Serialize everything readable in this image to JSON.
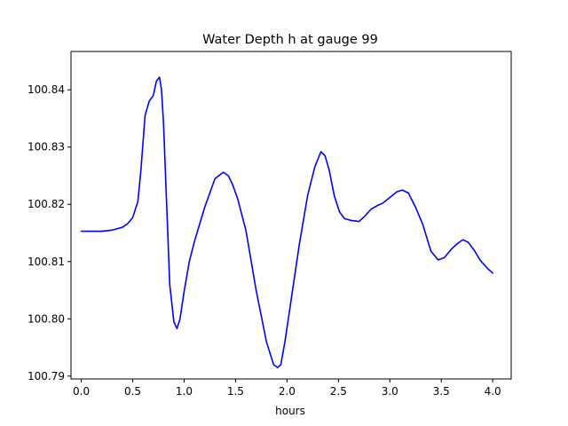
{
  "chart_data": {
    "type": "line",
    "title": "Water Depth h at gauge 99",
    "xlabel": "hours",
    "ylabel": "",
    "xlim": [
      -0.1,
      4.18
    ],
    "ylim": [
      100.7895,
      100.8467
    ],
    "xticks": [
      0.0,
      0.5,
      1.0,
      1.5,
      2.0,
      2.5,
      3.0,
      3.5,
      4.0
    ],
    "xtick_labels": [
      "0.0",
      "0.5",
      "1.0",
      "1.5",
      "2.0",
      "2.5",
      "3.0",
      "3.5",
      "4.0"
    ],
    "yticks": [
      100.79,
      100.8,
      100.81,
      100.82,
      100.83,
      100.84
    ],
    "ytick_labels": [
      "100.79",
      "100.80",
      "100.81",
      "100.82",
      "100.83",
      "100.84"
    ],
    "grid": false,
    "legend": "none",
    "series": [
      {
        "color": "#0000ff",
        "x": [
          0.0,
          0.1,
          0.2,
          0.3,
          0.4,
          0.45,
          0.5,
          0.55,
          0.58,
          0.62,
          0.66,
          0.7,
          0.73,
          0.76,
          0.78,
          0.8,
          0.83,
          0.86,
          0.9,
          0.93,
          0.96,
          1.0,
          1.05,
          1.1,
          1.2,
          1.3,
          1.38,
          1.43,
          1.47,
          1.52,
          1.6,
          1.7,
          1.8,
          1.87,
          1.91,
          1.94,
          1.98,
          2.05,
          2.12,
          2.2,
          2.27,
          2.33,
          2.37,
          2.41,
          2.46,
          2.51,
          2.56,
          2.62,
          2.7,
          2.76,
          2.82,
          2.88,
          2.93,
          3.0,
          3.07,
          3.12,
          3.18,
          3.25,
          3.32,
          3.4,
          3.47,
          3.53,
          3.6,
          3.66,
          3.71,
          3.76,
          3.82,
          3.88,
          3.95,
          4.0
        ],
        "y": [
          100.8153,
          100.8153,
          100.8153,
          100.8155,
          100.816,
          100.8166,
          100.8177,
          100.8205,
          100.826,
          100.8355,
          100.838,
          100.839,
          100.8415,
          100.8422,
          100.84,
          100.834,
          100.82,
          100.806,
          100.7995,
          100.7983,
          100.8,
          100.8048,
          100.81,
          100.8135,
          100.8195,
          100.8245,
          100.8256,
          100.825,
          100.8235,
          100.821,
          100.8155,
          100.805,
          100.796,
          100.792,
          100.7915,
          100.792,
          100.796,
          100.8045,
          100.813,
          100.8215,
          100.8265,
          100.8292,
          100.8285,
          100.826,
          100.8215,
          100.8187,
          100.8175,
          100.8172,
          100.817,
          100.818,
          100.8192,
          100.8198,
          100.8202,
          100.8212,
          100.8222,
          100.8225,
          100.822,
          100.8195,
          100.8165,
          100.8118,
          100.8103,
          100.8107,
          100.8122,
          100.8132,
          100.8138,
          100.8134,
          100.812,
          100.8102,
          100.8088,
          100.808
        ]
      }
    ]
  }
}
